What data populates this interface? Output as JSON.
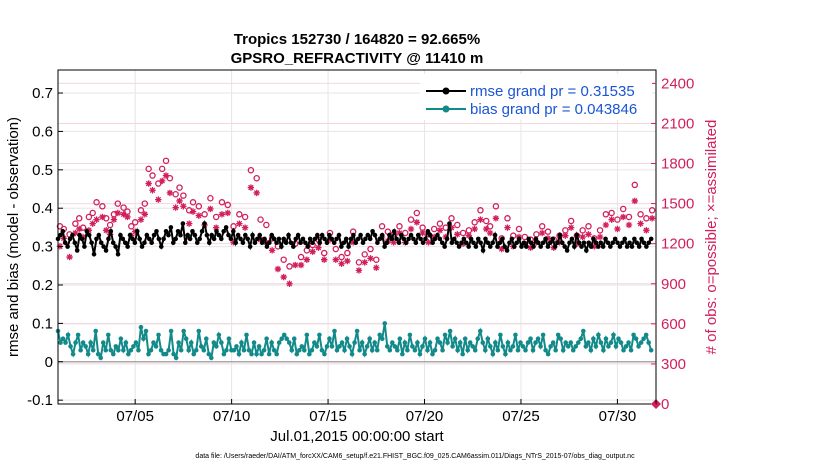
{
  "chart_data": {
    "type": "line",
    "title": "Tropics 152730 / 164820 = 92.665%",
    "subtitle": "GPSRO_REFRACTIVITY @ 11410 m",
    "xlabel": "Jul.01,2015 00:00:00 start",
    "ylabel": "rmse and bias (model - observation)",
    "ylabel_right": "# of obs: o=possible; ×=assimilated",
    "footer": "data file: /Users/raeder/DAI/ATM_forcXX/CAM6_setup/f.e21.FHIST_BGC.f09_025.CAM6assim.011/Diags_NTrS_2015-07/obs_diag_output.nc",
    "xlim": [
      1,
      32
    ],
    "ylim": [
      -0.11,
      0.76
    ],
    "ylim_right": [
      0,
      2500
    ],
    "x_ticks": [
      5,
      10,
      15,
      20,
      25,
      30
    ],
    "x_tick_labels": [
      "07/05",
      "07/10",
      "07/15",
      "07/20",
      "07/25",
      "07/30"
    ],
    "y_ticks": [
      -0.1,
      0,
      0.1,
      0.2,
      0.3,
      0.4,
      0.5,
      0.6,
      0.7
    ],
    "y_tick_labels": [
      "-0.1",
      "0",
      "0.1",
      "0.2",
      "0.3",
      "0.4",
      "0.5",
      "0.6",
      "0.7"
    ],
    "y_ticks_right": [
      0,
      300,
      600,
      900,
      1200,
      1500,
      1800,
      2100,
      2400
    ],
    "y_tick_labels_right": [
      "0",
      "300",
      "600",
      "900",
      "1200",
      "1500",
      "1800",
      "2100",
      "2400"
    ],
    "grid": true,
    "legend_position": "top-right",
    "colors": {
      "rmse": "#000000",
      "bias": "#138a8a",
      "obs": "#d21f5c",
      "zero_line": "#aaaaaa",
      "grid": "#e6e6e6",
      "legend_text": "#1a55d6"
    },
    "series": [
      {
        "name": "rmse grand pr = 0.31535",
        "axis": "left",
        "values": [
          0.32,
          0.33,
          0.34,
          0.31,
          0.3,
          0.32,
          0.33,
          0.31,
          0.29,
          0.33,
          0.32,
          0.3,
          0.34,
          0.33,
          0.31,
          0.28,
          0.32,
          0.33,
          0.31,
          0.3,
          0.29,
          0.32,
          0.34,
          0.31,
          0.3,
          0.28,
          0.33,
          0.32,
          0.31,
          0.3,
          0.33,
          0.32,
          0.31,
          0.34,
          0.32,
          0.3,
          0.31,
          0.33,
          0.32,
          0.31,
          0.33,
          0.34,
          0.32,
          0.3,
          0.32,
          0.34,
          0.33,
          0.35,
          0.31,
          0.32,
          0.34,
          0.33,
          0.36,
          0.31,
          0.33,
          0.32,
          0.34,
          0.33,
          0.31,
          0.32,
          0.34,
          0.36,
          0.33,
          0.31,
          0.33,
          0.32,
          0.34,
          0.33,
          0.32,
          0.34,
          0.35,
          0.33,
          0.32,
          0.34,
          0.31,
          0.33,
          0.32,
          0.31,
          0.33,
          0.32,
          0.3,
          0.33,
          0.31,
          0.32,
          0.33,
          0.31,
          0.32,
          0.3,
          0.31,
          0.33,
          0.32,
          0.31,
          0.32,
          0.3,
          0.32,
          0.31,
          0.33,
          0.31,
          0.3,
          0.32,
          0.33,
          0.31,
          0.32,
          0.31,
          0.3,
          0.32,
          0.31,
          0.32,
          0.33,
          0.31,
          0.33,
          0.32,
          0.31,
          0.33,
          0.32,
          0.31,
          0.32,
          0.33,
          0.3,
          0.31,
          0.32,
          0.3,
          0.32,
          0.33,
          0.31,
          0.32,
          0.33,
          0.31,
          0.32,
          0.33,
          0.32,
          0.34,
          0.33,
          0.31,
          0.32,
          0.33,
          0.3,
          0.31,
          0.33,
          0.32,
          0.34,
          0.32,
          0.31,
          0.33,
          0.32,
          0.31,
          0.32,
          0.33,
          0.32,
          0.31,
          0.33,
          0.32,
          0.31,
          0.32,
          0.34,
          0.33,
          0.31,
          0.32,
          0.33,
          0.32,
          0.31,
          0.3,
          0.32,
          0.36,
          0.31,
          0.32,
          0.31,
          0.3,
          0.31,
          0.32,
          0.31,
          0.3,
          0.32,
          0.31,
          0.3,
          0.32,
          0.31,
          0.29,
          0.32,
          0.31,
          0.3,
          0.31,
          0.33,
          0.3,
          0.31,
          0.32,
          0.3,
          0.29,
          0.31,
          0.32,
          0.3,
          0.31,
          0.32,
          0.3,
          0.31,
          0.3,
          0.32,
          0.31,
          0.3,
          0.32,
          0.31,
          0.3,
          0.31,
          0.32,
          0.3,
          0.31,
          0.32,
          0.3,
          0.31,
          0.33,
          0.31,
          0.3,
          0.29,
          0.31,
          0.32,
          0.3,
          0.33,
          0.31,
          0.3,
          0.31,
          0.29,
          0.31,
          0.3,
          0.32,
          0.31,
          0.3,
          0.31,
          0.3,
          0.32,
          0.31,
          0.3,
          0.31,
          0.32,
          0.31,
          0.3,
          0.31,
          0.32,
          0.3,
          0.31,
          0.3,
          0.32,
          0.31,
          0.3,
          0.32,
          0.31,
          0.3,
          0.31,
          0.32
        ]
      },
      {
        "name": "bias grand pr = 0.043846",
        "axis": "left",
        "values": [
          0.08,
          0.05,
          0.06,
          0.05,
          0.07,
          0.04,
          0.02,
          0.05,
          0.07,
          0.03,
          0.05,
          0.04,
          0.02,
          0.05,
          0.03,
          0.08,
          0.02,
          0.01,
          0.05,
          0.03,
          0.07,
          0.03,
          0.02,
          0.04,
          0.03,
          0.06,
          0.03,
          0.05,
          0.02,
          0.03,
          0.04,
          0.05,
          0.03,
          0.09,
          0.06,
          0.08,
          0.02,
          0.03,
          0.05,
          0.04,
          0.07,
          0.03,
          0.02,
          0.02,
          0.03,
          0.08,
          0.02,
          0.01,
          0.05,
          0.03,
          0.08,
          0.06,
          0.03,
          0.05,
          0.02,
          0.03,
          0.08,
          0.04,
          0.03,
          0.06,
          0.02,
          0.01,
          0.05,
          0.04,
          0.07,
          0.05,
          0.02,
          0.03,
          0.06,
          0.03,
          0.03,
          0.04,
          0.02,
          0.05,
          0.03,
          0.07,
          0.03,
          0.02,
          0.05,
          0.02,
          0.04,
          0.02,
          0.03,
          0.06,
          0.02,
          0.05,
          0.03,
          0.02,
          0.05,
          0.06,
          0.07,
          0.06,
          0.05,
          0.03,
          0.06,
          0.02,
          0.03,
          0.04,
          0.03,
          0.07,
          0.02,
          0.03,
          0.05,
          0.04,
          0.07,
          0.03,
          0.02,
          0.04,
          0.06,
          0.04,
          0.08,
          0.03,
          0.04,
          0.05,
          0.03,
          0.06,
          0.04,
          0.02,
          0.05,
          0.08,
          0.03,
          0.05,
          0.02,
          0.04,
          0.06,
          0.03,
          0.05,
          0.03,
          0.07,
          0.06,
          0.1,
          0.04,
          0.03,
          0.05,
          0.04,
          0.03,
          0.06,
          0.02,
          0.05,
          0.03,
          0.07,
          0.04,
          0.03,
          0.05,
          0.02,
          0.04,
          0.06,
          0.03,
          0.05,
          0.02,
          0.03,
          0.06,
          0.05,
          0.03,
          0.07,
          0.05,
          0.08,
          0.04,
          0.06,
          0.03,
          0.05,
          0.02,
          0.06,
          0.03,
          0.05,
          0.04,
          0.03,
          0.06,
          0.08,
          0.05,
          0.03,
          0.06,
          0.04,
          0.02,
          0.05,
          0.03,
          0.07,
          0.04,
          0.02,
          0.05,
          0.03,
          0.04,
          0.07,
          0.03,
          0.05,
          0.04,
          0.03,
          0.05,
          0.06,
          0.03,
          0.05,
          0.06,
          0.04,
          0.07,
          0.03,
          0.02,
          0.04,
          0.05,
          0.03,
          0.07,
          0.06,
          0.03,
          0.05,
          0.04,
          0.05,
          0.03,
          0.04,
          0.05,
          0.06,
          0.08,
          0.04,
          0.05,
          0.03,
          0.06,
          0.04,
          0.07,
          0.05,
          0.03,
          0.06,
          0.04,
          0.05,
          0.07,
          0.04,
          0.06,
          0.05,
          0.03,
          0.04,
          0.05,
          0.03,
          0.07,
          0.06,
          0.04,
          0.05,
          0.06,
          0.07,
          0.05,
          0.03
        ]
      },
      {
        "name": "possible",
        "axis": "right",
        "marker": "o",
        "x": [
          1.1,
          1.3,
          1.6,
          1.9,
          2.1,
          2.3,
          2.6,
          2.8,
          3.0,
          3.3,
          3.5,
          3.7,
          3.9,
          4.1,
          4.4,
          4.6,
          4.8,
          5.0,
          5.3,
          5.5,
          5.7,
          5.9,
          6.2,
          6.4,
          6.6,
          6.8,
          7.1,
          7.3,
          7.5,
          7.8,
          8.0,
          8.3,
          8.6,
          8.9,
          9.2,
          9.5,
          9.8,
          10.1,
          10.4,
          10.7,
          11.0,
          11.3,
          11.5,
          11.8,
          12.1,
          12.4,
          12.7,
          13.0,
          13.3,
          13.6,
          13.9,
          14.2,
          14.5,
          14.8,
          15.1,
          15.4,
          15.7,
          16.0,
          16.3,
          16.6,
          16.9,
          17.2,
          17.5,
          17.8,
          18.1,
          18.4,
          18.7,
          19.0,
          19.3,
          19.6,
          19.9,
          20.2,
          20.5,
          20.8,
          21.1,
          21.4,
          21.7,
          22.0,
          22.3,
          22.6,
          22.9,
          23.2,
          23.4,
          23.7,
          24.0,
          24.3,
          24.6,
          24.9,
          25.2,
          25.5,
          25.8,
          26.1,
          26.4,
          26.7,
          27.0,
          27.3,
          27.6,
          27.9,
          28.2,
          28.5,
          28.8,
          29.1,
          29.4,
          29.7,
          30.0,
          30.3,
          30.6,
          30.9,
          31.2,
          31.5,
          31.8
        ],
        "values": [
          1330,
          1310,
          1270,
          1350,
          1390,
          1320,
          1400,
          1430,
          1510,
          1480,
          1390,
          1340,
          1420,
          1500,
          1470,
          1440,
          1330,
          1360,
          1450,
          1500,
          1760,
          1710,
          1650,
          1760,
          1820,
          1690,
          1570,
          1620,
          1560,
          1450,
          1510,
          1480,
          1420,
          1540,
          1400,
          1510,
          1490,
          1330,
          1420,
          1400,
          1750,
          1690,
          1380,
          1340,
          1240,
          1180,
          1080,
          1030,
          1200,
          1100,
          1150,
          1190,
          1230,
          1130,
          1280,
          1160,
          1100,
          1130,
          1290,
          1060,
          1120,
          1160,
          1080,
          1330,
          1290,
          1270,
          1330,
          1280,
          1380,
          1430,
          1320,
          1270,
          1310,
          1350,
          1320,
          1390,
          1340,
          1280,
          1300,
          1360,
          1450,
          1370,
          1330,
          1480,
          1240,
          1390,
          1260,
          1310,
          1250,
          1230,
          1270,
          1330,
          1290,
          1230,
          1260,
          1300,
          1370,
          1260,
          1300,
          1330,
          1240,
          1300,
          1420,
          1430,
          1380,
          1460,
          1400,
          1640,
          1420,
          1390,
          1450
        ]
      },
      {
        "name": "assimilated",
        "axis": "right",
        "marker": "*",
        "x": [
          1.1,
          1.3,
          1.6,
          1.9,
          2.1,
          2.3,
          2.6,
          2.8,
          3.0,
          3.3,
          3.5,
          3.7,
          3.9,
          4.1,
          4.4,
          4.6,
          4.8,
          5.0,
          5.3,
          5.5,
          5.7,
          5.9,
          6.2,
          6.4,
          6.6,
          6.8,
          7.1,
          7.3,
          7.5,
          7.8,
          8.0,
          8.3,
          8.6,
          8.9,
          9.2,
          9.5,
          9.8,
          10.1,
          10.4,
          10.7,
          11.0,
          11.3,
          11.5,
          11.8,
          12.1,
          12.4,
          12.7,
          13.0,
          13.3,
          13.6,
          13.9,
          14.2,
          14.5,
          14.8,
          15.1,
          15.4,
          15.7,
          16.0,
          16.3,
          16.6,
          16.9,
          17.2,
          17.5,
          17.8,
          18.1,
          18.4,
          18.7,
          19.0,
          19.3,
          19.6,
          19.9,
          20.2,
          20.5,
          20.8,
          21.1,
          21.4,
          21.7,
          22.0,
          22.3,
          22.6,
          22.9,
          23.2,
          23.4,
          23.7,
          24.0,
          24.3,
          24.6,
          24.9,
          25.2,
          25.5,
          25.8,
          26.1,
          26.4,
          26.7,
          27.0,
          27.3,
          27.6,
          27.9,
          28.2,
          28.5,
          28.8,
          29.1,
          29.4,
          29.7,
          30.0,
          30.3,
          30.6,
          30.9,
          31.2,
          31.5,
          31.8
        ],
        "values": [
          1180,
          1240,
          1100,
          1280,
          1310,
          1250,
          1300,
          1350,
          1380,
          1400,
          1300,
          1270,
          1380,
          1430,
          1420,
          1400,
          1260,
          1290,
          1380,
          1420,
          1650,
          1600,
          1530,
          1670,
          1710,
          1580,
          1470,
          1520,
          1480,
          1350,
          1440,
          1410,
          1340,
          1460,
          1320,
          1420,
          1430,
          1210,
          1350,
          1320,
          1620,
          1580,
          1230,
          1210,
          1150,
          1010,
          950,
          900,
          1040,
          1040,
          1080,
          1140,
          1170,
          1080,
          1230,
          1080,
          1050,
          1070,
          1210,
          1000,
          1060,
          1090,
          1020,
          1250,
          1220,
          1210,
          1280,
          1210,
          1310,
          1360,
          1280,
          1210,
          1250,
          1300,
          1250,
          1320,
          1270,
          1200,
          1260,
          1310,
          1380,
          1310,
          1280,
          1390,
          1160,
          1320,
          1180,
          1250,
          1200,
          1170,
          1210,
          1280,
          1240,
          1170,
          1210,
          1260,
          1320,
          1200,
          1250,
          1270,
          1180,
          1250,
          1340,
          1380,
          1310,
          1400,
          1340,
          1520,
          1350,
          1300,
          1390
        ]
      }
    ],
    "right_axis_marker": {
      "x": 32,
      "value": 0
    }
  }
}
